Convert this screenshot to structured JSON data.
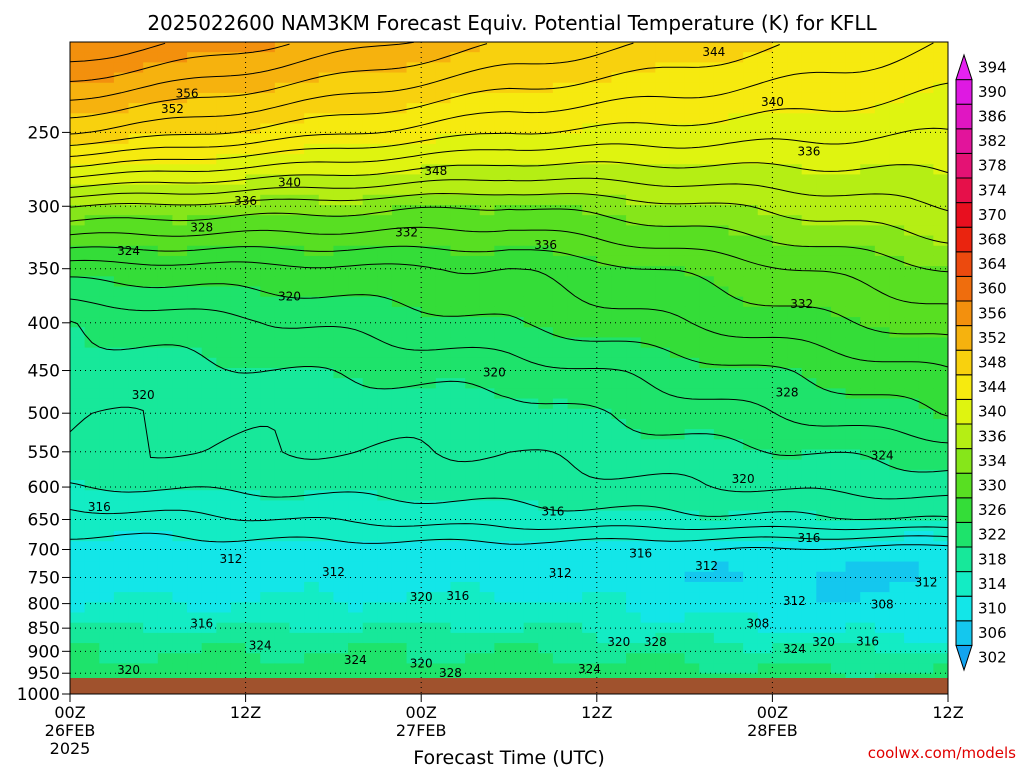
{
  "chart_data": {
    "type": "contour",
    "title": "2025022600 NAM3KM Forecast Equiv. Potential Temperature (K) for KFLL",
    "xlabel": "Forecast Time (UTC)",
    "ylabel": "",
    "x_ticks": [
      {
        "hour": 0,
        "line1": "00Z",
        "line2": "26FEB",
        "line3": "2025"
      },
      {
        "hour": 12,
        "line1": "12Z",
        "line2": "",
        "line3": ""
      },
      {
        "hour": 24,
        "line1": "00Z",
        "line2": "27FEB",
        "line3": ""
      },
      {
        "hour": 36,
        "line1": "12Z",
        "line2": "",
        "line3": ""
      },
      {
        "hour": 48,
        "line1": "00Z",
        "line2": "28FEB",
        "line3": ""
      },
      {
        "hour": 60,
        "line1": "12Z",
        "line2": "",
        "line3": ""
      }
    ],
    "xlim": [
      0,
      60
    ],
    "y_ticks": [
      "250",
      "300",
      "350",
      "400",
      "450",
      "500",
      "550",
      "600",
      "650",
      "700",
      "750",
      "800",
      "850",
      "900",
      "950",
      "1000"
    ],
    "ylim": [
      1000,
      200
    ],
    "y_scale": "log",
    "grid": true,
    "colorbar": {
      "levels": [
        302,
        306,
        310,
        314,
        318,
        322,
        326,
        330,
        334,
        336,
        340,
        344,
        348,
        352,
        356,
        360,
        364,
        368,
        370,
        374,
        378,
        382,
        386,
        390,
        394,
        398
      ],
      "colors": [
        "#13a4f0",
        "#14c7ee",
        "#13e6e8",
        "#13ecc4",
        "#17e89a",
        "#1ee36b",
        "#34dd38",
        "#58df22",
        "#86e61a",
        "#b5ee14",
        "#dff410",
        "#f6ea0f",
        "#f8d10e",
        "#f6b20e",
        "#f3900d",
        "#ef6d0d",
        "#ec4a0e",
        "#ea240f",
        "#e80f1f",
        "#e6104a",
        "#e41274",
        "#e2149b",
        "#e016c2",
        "#de19e2",
        "#e622f0"
      ]
    },
    "contour_labels": [
      {
        "value": 344,
        "hour": 44,
        "pres": 205
      },
      {
        "value": 340,
        "hour": 48,
        "pres": 232
      },
      {
        "value": 336,
        "hour": 50.5,
        "pres": 262
      },
      {
        "value": 356,
        "hour": 8,
        "pres": 227
      },
      {
        "value": 352,
        "hour": 7,
        "pres": 236
      },
      {
        "value": 348,
        "hour": 25,
        "pres": 275
      },
      {
        "value": 340,
        "hour": 15,
        "pres": 283
      },
      {
        "value": 336,
        "hour": 12,
        "pres": 296
      },
      {
        "value": 328,
        "hour": 9,
        "pres": 316
      },
      {
        "value": 324,
        "hour": 4,
        "pres": 335
      },
      {
        "value": 332,
        "hour": 23,
        "pres": 320
      },
      {
        "value": 336,
        "hour": 32.5,
        "pres": 330
      },
      {
        "value": 332,
        "hour": 50,
        "pres": 382
      },
      {
        "value": 320,
        "hour": 15,
        "pres": 375
      },
      {
        "value": 320,
        "hour": 29,
        "pres": 452
      },
      {
        "value": 328,
        "hour": 49,
        "pres": 475
      },
      {
        "value": 320,
        "hour": 5,
        "pres": 478
      },
      {
        "value": 324,
        "hour": 55.5,
        "pres": 555
      },
      {
        "value": 320,
        "hour": 46,
        "pres": 588
      },
      {
        "value": 316,
        "hour": 33,
        "pres": 637
      },
      {
        "value": 316,
        "hour": 2,
        "pres": 630
      },
      {
        "value": 316,
        "hour": 50.5,
        "pres": 680
      },
      {
        "value": 312,
        "hour": 11,
        "pres": 717
      },
      {
        "value": 316,
        "hour": 39,
        "pres": 707
      },
      {
        "value": 312,
        "hour": 18,
        "pres": 740
      },
      {
        "value": 312,
        "hour": 33.5,
        "pres": 742
      },
      {
        "value": 312,
        "hour": 43.5,
        "pres": 729
      },
      {
        "value": 320,
        "hour": 24,
        "pres": 787
      },
      {
        "value": 316,
        "hour": 26.5,
        "pres": 785
      },
      {
        "value": 312,
        "hour": 58.5,
        "pres": 759
      },
      {
        "value": 312,
        "hour": 49.5,
        "pres": 795
      },
      {
        "value": 308,
        "hour": 55.5,
        "pres": 802
      },
      {
        "value": 316,
        "hour": 9,
        "pres": 840
      },
      {
        "value": 308,
        "hour": 47,
        "pres": 840
      },
      {
        "value": 324,
        "hour": 13,
        "pres": 887
      },
      {
        "value": 320,
        "hour": 37.5,
        "pres": 880
      },
      {
        "value": 328,
        "hour": 40,
        "pres": 880
      },
      {
        "value": 324,
        "hour": 49.5,
        "pres": 895
      },
      {
        "value": 320,
        "hour": 51.5,
        "pres": 880
      },
      {
        "value": 316,
        "hour": 54.5,
        "pres": 878
      },
      {
        "value": 324,
        "hour": 19.5,
        "pres": 920
      },
      {
        "value": 320,
        "hour": 24,
        "pres": 927
      },
      {
        "value": 328,
        "hour": 26,
        "pres": 950
      },
      {
        "value": 324,
        "hour": 35.5,
        "pres": 940
      },
      {
        "value": 320,
        "hour": 4,
        "pres": 943
      }
    ]
  },
  "watermark": "coolwx.com/models",
  "colors": {
    "ground": "#a0522d",
    "watermark": "#e00000",
    "background": "#ffffff"
  }
}
